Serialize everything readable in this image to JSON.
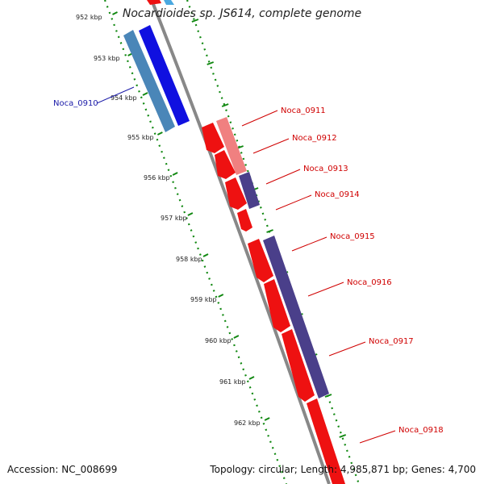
{
  "title": "Nocardioides sp. JS614, complete genome",
  "footer": {
    "accession": "Accession: NC_008699",
    "stats": "Topology: circular; Length: 4,985,871 bp; Genes: 4,700"
  },
  "colors": {
    "background": "#ffffff",
    "backbone": "#8a8a8a",
    "tick_dots": "#118811",
    "forward_gene_label": "#1a1aa8",
    "reverse_gene_label": "#d00000",
    "gene_red": "#ee1111",
    "gene_pink": "#f08080",
    "gene_blue": "#1010e0",
    "gene_steel": "#4a86b8",
    "gene_purple": "#4a3f8a"
  },
  "scale_labels": [
    "952 kbp",
    "953 kbp",
    "954 kbp",
    "955 kbp",
    "956 kbp",
    "957 kbp",
    "958 kbp",
    "959 kbp",
    "960 kbp",
    "961 kbp",
    "962 kbp"
  ],
  "genes": [
    {
      "name": "Noca_0910",
      "strand": "forward",
      "color": "#1a1aa8"
    },
    {
      "name": "Noca_0911",
      "strand": "reverse",
      "color": "#d00000"
    },
    {
      "name": "Noca_0912",
      "strand": "reverse",
      "color": "#d00000"
    },
    {
      "name": "Noca_0913",
      "strand": "reverse",
      "color": "#d00000"
    },
    {
      "name": "Noca_0914",
      "strand": "reverse",
      "color": "#d00000"
    },
    {
      "name": "Noca_0915",
      "strand": "reverse",
      "color": "#d00000"
    },
    {
      "name": "Noca_0916",
      "strand": "reverse",
      "color": "#d00000"
    },
    {
      "name": "Noca_0917",
      "strand": "reverse",
      "color": "#d00000"
    },
    {
      "name": "Noca_0918",
      "strand": "reverse",
      "color": "#d00000"
    }
  ]
}
